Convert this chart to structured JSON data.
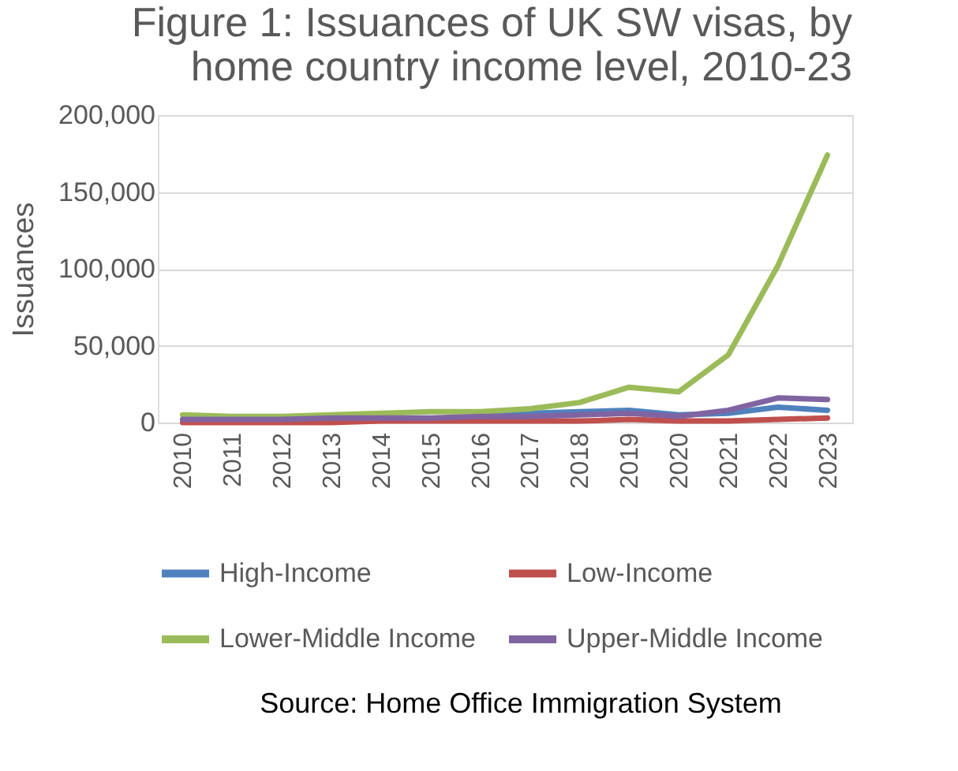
{
  "chart_data": {
    "type": "line",
    "title": [
      "Figure 1: Issuances of UK SW visas, by",
      "home country income level, 2010-23"
    ],
    "ylabel": "Issuances",
    "categories": [
      "2010",
      "2011",
      "2012",
      "2013",
      "2014",
      "2015",
      "2016",
      "2017",
      "2018",
      "2019",
      "2020",
      "2021",
      "2022",
      "2023"
    ],
    "series": [
      {
        "name": "High-Income",
        "color": "#4f81bd",
        "values": [
          null,
          null,
          null,
          null,
          null,
          null,
          5000,
          6000,
          7000,
          8000,
          5000,
          6000,
          10000,
          8000
        ]
      },
      {
        "name": "Low-Income",
        "color": "#c0504d",
        "values": [
          0,
          0,
          0,
          0,
          1000,
          1000,
          1000,
          1000,
          1000,
          2000,
          1000,
          1000,
          2000,
          3000
        ]
      },
      {
        "name": "Lower-Middle Income",
        "color": "#9bbb59",
        "values": [
          5000,
          4000,
          4000,
          5000,
          6000,
          7000,
          7000,
          9000,
          13000,
          23000,
          20000,
          44000,
          102000,
          174000
        ]
      },
      {
        "name": "Upper-Middle Income",
        "color": "#8064a2",
        "values": [
          2000,
          2000,
          2000,
          3000,
          3000,
          3000,
          4000,
          4000,
          5000,
          6000,
          4000,
          8000,
          16000,
          15000
        ]
      }
    ],
    "ylim": [
      0,
      200000
    ],
    "yticks": [
      0,
      {
        "value": 50000,
        "label": "50,000"
      },
      {
        "value": 100000,
        "label": "100,000"
      },
      {
        "value": 150000,
        "label": "150,000"
      },
      {
        "value": 200000,
        "label": "200,000"
      }
    ],
    "grid": "y",
    "legend": "bottom",
    "marker": "none",
    "line_style": "solid",
    "annotations": [
      "Source: Home Office Immigration System"
    ]
  }
}
